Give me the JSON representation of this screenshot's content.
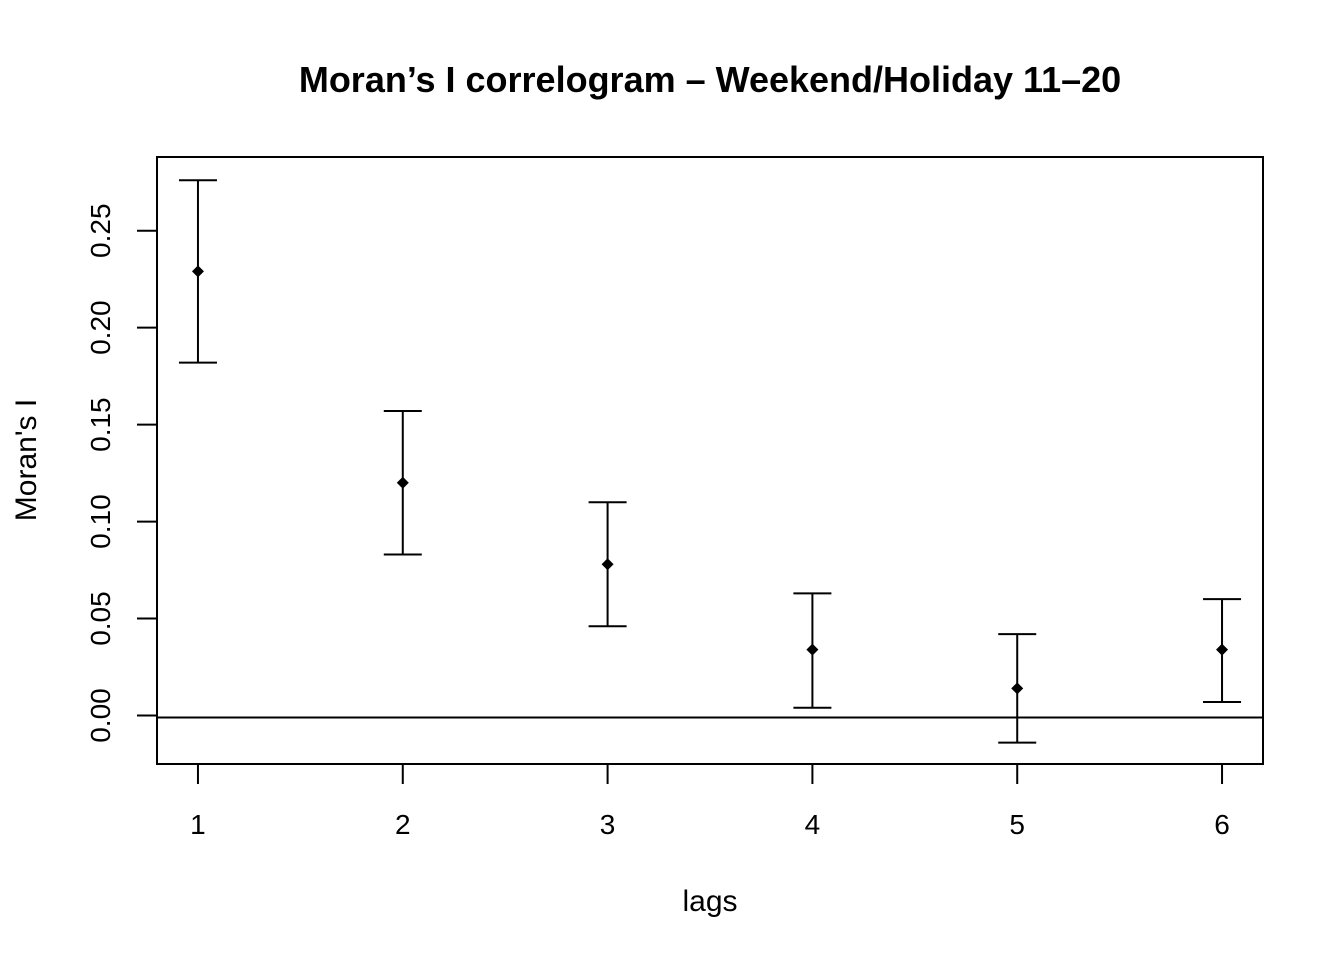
{
  "chart_data": {
    "type": "scatter",
    "title": "Moran’s I correlogram – Weekend/Holiday 11–20",
    "xlabel": "lags",
    "ylabel": "Moran's  I",
    "x": [
      1,
      2,
      3,
      4,
      5,
      6
    ],
    "y": [
      0.229,
      0.12,
      0.078,
      0.034,
      0.014,
      0.034
    ],
    "lower": [
      0.182,
      0.083,
      0.046,
      0.004,
      -0.014,
      0.007
    ],
    "upper": [
      0.276,
      0.157,
      0.11,
      0.063,
      0.042,
      0.06
    ],
    "expected_line": -0.001,
    "x_ticks": [
      "1",
      "2",
      "3",
      "4",
      "5",
      "6"
    ],
    "y_ticks": [
      "0.00",
      "0.05",
      "0.10",
      "0.15",
      "0.20",
      "0.25"
    ],
    "y_tick_values": [
      0.0,
      0.05,
      0.1,
      0.15,
      0.2,
      0.25
    ],
    "xlim": [
      0.8,
      6.2
    ],
    "ylim": [
      -0.025,
      0.288
    ],
    "grid": false,
    "legend": "none",
    "marker": "diamond",
    "color": "#000000"
  }
}
